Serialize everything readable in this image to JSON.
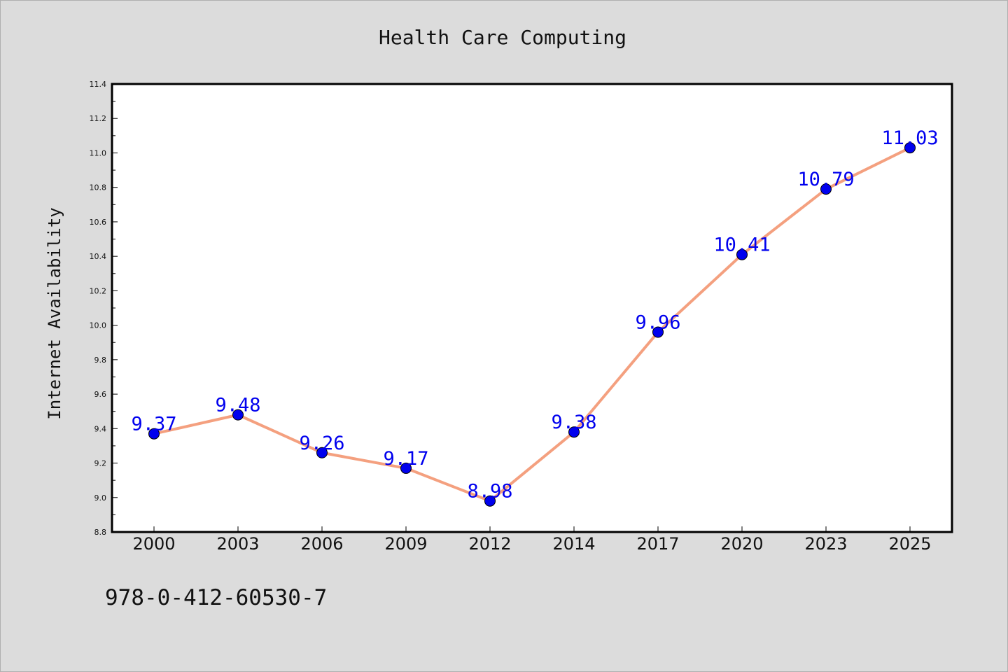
{
  "chart_data": {
    "type": "line",
    "title": "Health Care Computing",
    "xlabel": "",
    "ylabel": "Internet Availability",
    "categories": [
      "2000",
      "2003",
      "2006",
      "2009",
      "2012",
      "2014",
      "2017",
      "2020",
      "2023",
      "2025"
    ],
    "series": [
      {
        "values": [
          9.37,
          9.48,
          9.26,
          9.17,
          8.98,
          9.38,
          9.96,
          10.41,
          10.79,
          11.03
        ],
        "line_color": "#f4a07f",
        "marker_color": "#0000ee",
        "label_color": "#0000ee"
      }
    ],
    "ylim": [
      8.8,
      11.4
    ],
    "y_ticks": [
      8.8,
      9.0,
      9.2,
      9.4,
      9.6,
      9.8,
      10.0,
      10.2,
      10.4,
      10.6,
      10.8,
      11.0,
      11.2,
      11.4
    ],
    "grid": false,
    "legend": "none"
  },
  "footer": {
    "isbn": "978-0-412-60530-7"
  },
  "colors": {
    "background": "#dcdcdc",
    "plot_background": "#ffffff",
    "axis": "#000000"
  }
}
